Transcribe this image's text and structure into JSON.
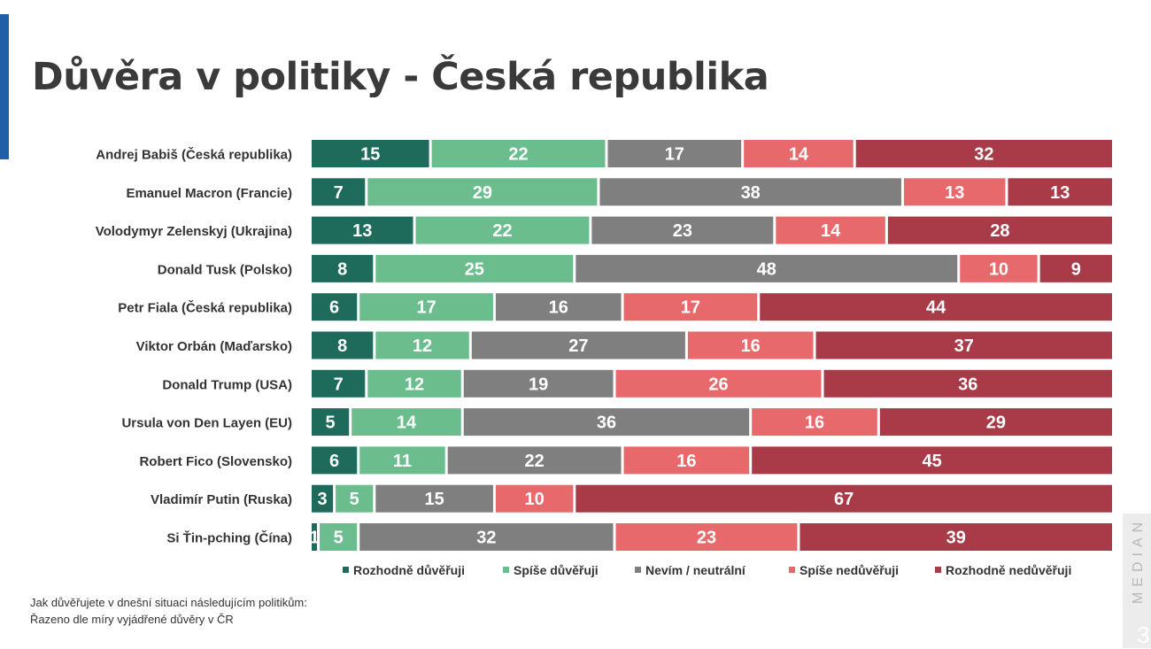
{
  "title": "Důvěra v politiky - Česká republika",
  "footnote": {
    "line1": "Jak důvěřujete v dnešní situaci následujícím politikům:",
    "line2": "Řazeno dle míry vyjádřené důvěry v ČR"
  },
  "brand": "MEDIAN",
  "page_number": "3",
  "chart_data": {
    "type": "bar",
    "orientation": "horizontal",
    "stacked": true,
    "percent_stacked": true,
    "categories": [
      "Andrej Babiš (Česká republika)",
      "Emanuel Macron (Francie)",
      "Volodymyr Zelenskyj (Ukrajina)",
      "Donald Tusk (Polsko)",
      "Petr Fiala (Česká republika)",
      "Viktor Orbán (Maďarsko)",
      "Donald Trump (USA)",
      "Ursula von Den Layen (EU)",
      "Robert Fico (Slovensko)",
      "Vladimír Putin (Ruska)",
      "Si Ťin-pching (Čína)"
    ],
    "series": [
      {
        "name": "Rozhodně důvěřuji",
        "color": "#1e6b5c",
        "values": [
          15,
          7,
          13,
          8,
          6,
          8,
          7,
          5,
          6,
          3,
          1
        ]
      },
      {
        "name": "Spíše důvěřuji",
        "color": "#6bbd8e",
        "values": [
          22,
          29,
          22,
          25,
          17,
          12,
          12,
          14,
          11,
          5,
          5
        ]
      },
      {
        "name": "Nevím / neutrální",
        "color": "#7f7f7f",
        "values": [
          17,
          38,
          23,
          48,
          16,
          27,
          19,
          36,
          22,
          15,
          32
        ]
      },
      {
        "name": "Spíše nedůvěřuji",
        "color": "#e8696b",
        "values": [
          14,
          13,
          14,
          10,
          17,
          16,
          26,
          16,
          16,
          10,
          23
        ]
      },
      {
        "name": "Rozhodně nedůvěřuji",
        "color": "#a83b47",
        "values": [
          32,
          13,
          28,
          9,
          44,
          37,
          36,
          29,
          45,
          67,
          39
        ]
      }
    ],
    "legend_position": "bottom",
    "grid": false
  }
}
